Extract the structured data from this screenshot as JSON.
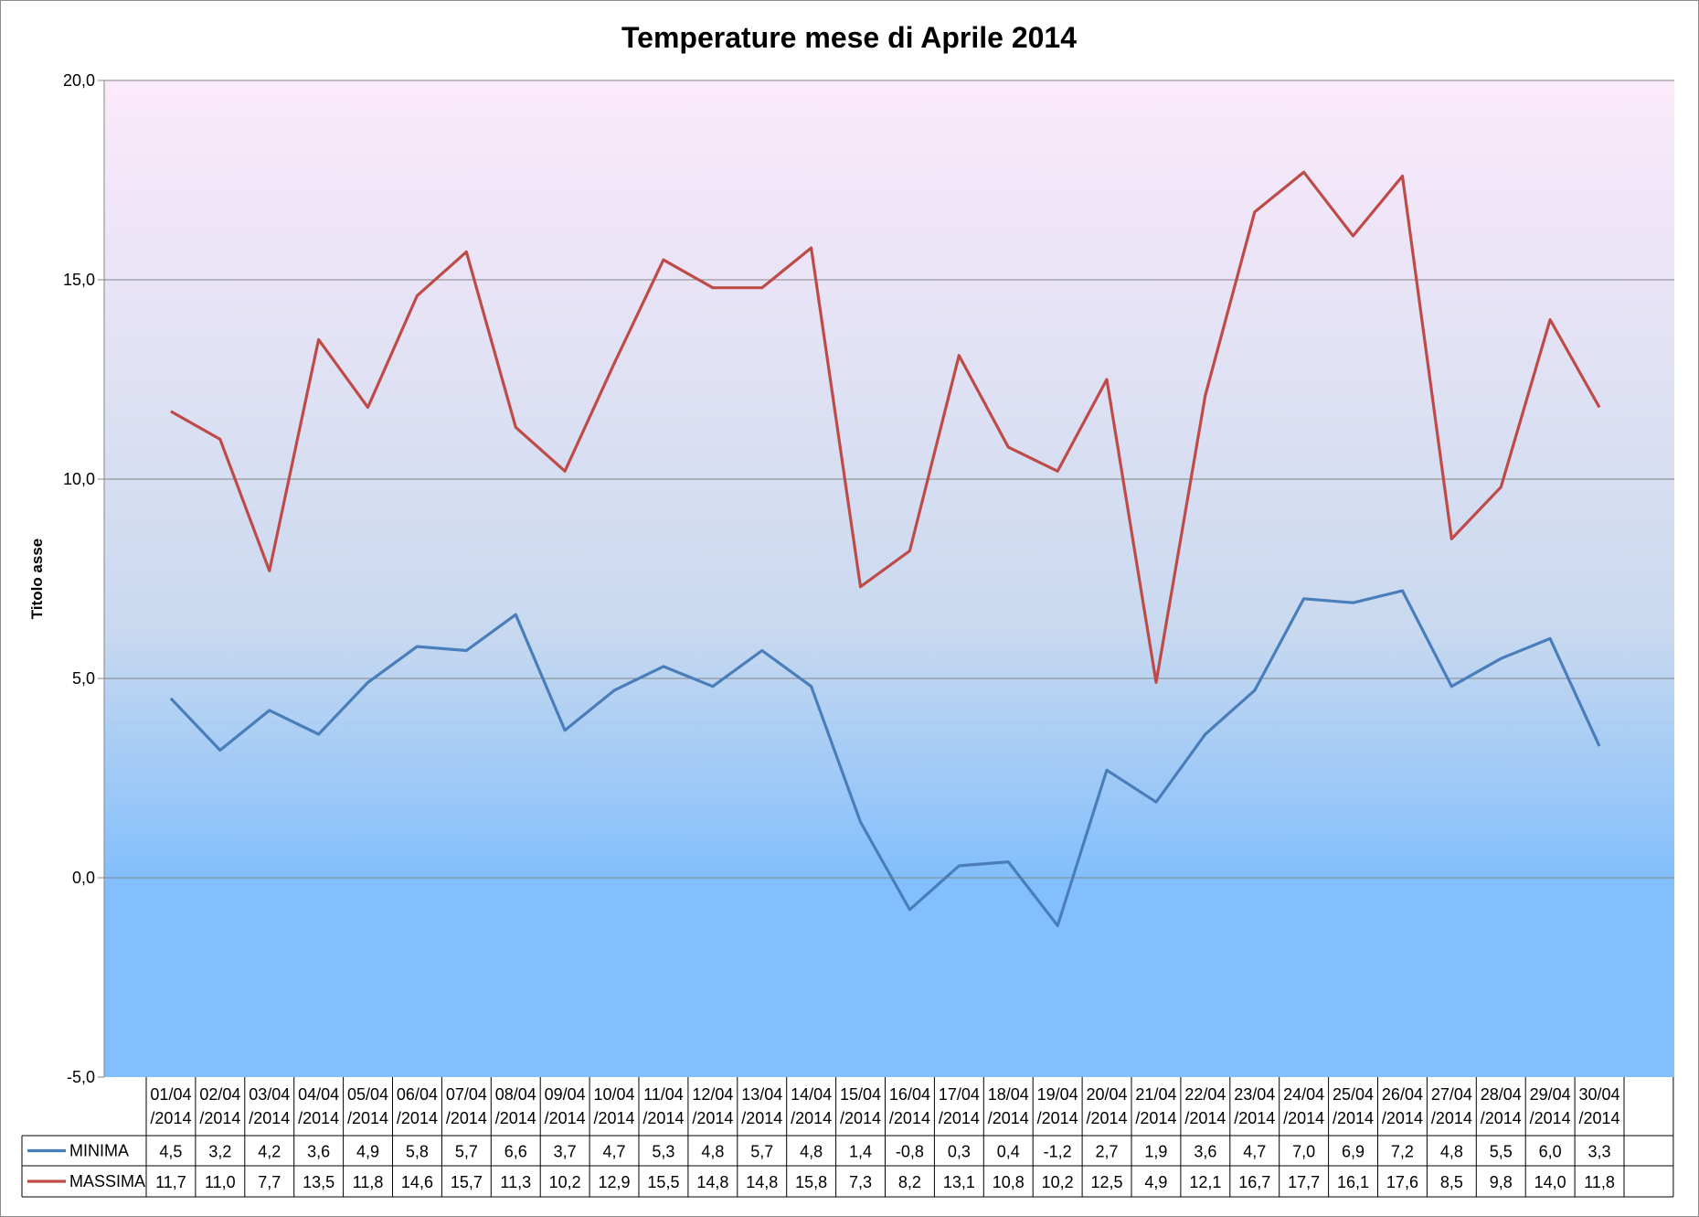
{
  "chart_data": {
    "type": "line",
    "title": "Temperature mese di Aprile 2014",
    "ylabel": "Titolo asse",
    "xlabel": "",
    "ylim": [
      -5,
      20
    ],
    "yticks": [
      "-5,0",
      "0,0",
      "5,0",
      "10,0",
      "15,0",
      "20,0"
    ],
    "ytick_values": [
      -5,
      0,
      5,
      10,
      15,
      20
    ],
    "grid": true,
    "legend": "bottom-table",
    "categories_line1": [
      "01/04",
      "02/04",
      "03/04",
      "04/04",
      "05/04",
      "06/04",
      "07/04",
      "08/04",
      "09/04",
      "10/04",
      "11/04",
      "12/04",
      "13/04",
      "14/04",
      "15/04",
      "16/04",
      "17/04",
      "18/04",
      "19/04",
      "20/04",
      "21/04",
      "22/04",
      "23/04",
      "24/04",
      "25/04",
      "26/04",
      "27/04",
      "28/04",
      "29/04",
      "30/04"
    ],
    "categories_line2": [
      "/2014",
      "/2014",
      "/2014",
      "/2014",
      "/2014",
      "/2014",
      "/2014",
      "/2014",
      "/2014",
      "/2014",
      "/2014",
      "/2014",
      "/2014",
      "/2014",
      "/2014",
      "/2014",
      "/2014",
      "/2014",
      "/2014",
      "/2014",
      "/2014",
      "/2014",
      "/2014",
      "/2014",
      "/2014",
      "/2014",
      "/2014",
      "/2014",
      "/2014",
      "/2014"
    ],
    "series": [
      {
        "name": "MINIMA",
        "color": "#4a7ebb",
        "values": [
          4.5,
          3.2,
          4.2,
          3.6,
          4.9,
          5.8,
          5.7,
          6.6,
          3.7,
          4.7,
          5.3,
          4.8,
          5.7,
          4.8,
          1.4,
          -0.8,
          0.3,
          0.4,
          -1.2,
          2.7,
          1.9,
          3.6,
          4.7,
          7.0,
          6.9,
          7.2,
          4.8,
          5.5,
          6.0,
          3.3
        ],
        "labels": [
          "4,5",
          "3,2",
          "4,2",
          "3,6",
          "4,9",
          "5,8",
          "5,7",
          "6,6",
          "3,7",
          "4,7",
          "5,3",
          "4,8",
          "5,7",
          "4,8",
          "1,4",
          "-0,8",
          "0,3",
          "0,4",
          "-1,2",
          "2,7",
          "1,9",
          "3,6",
          "4,7",
          "7,0",
          "6,9",
          "7,2",
          "4,8",
          "5,5",
          "6,0",
          "3,3"
        ]
      },
      {
        "name": "MASSIMA",
        "color": "#be4b48",
        "values": [
          11.7,
          11.0,
          7.7,
          13.5,
          11.8,
          14.6,
          15.7,
          11.3,
          10.2,
          12.9,
          15.5,
          14.8,
          14.8,
          15.8,
          7.3,
          8.2,
          13.1,
          10.8,
          10.2,
          12.5,
          4.9,
          12.1,
          16.7,
          17.7,
          16.1,
          17.6,
          8.5,
          9.8,
          14.0,
          11.8
        ],
        "labels": [
          "11,7",
          "11,0",
          "7,7",
          "13,5",
          "11,8",
          "14,6",
          "15,7",
          "11,3",
          "10,2",
          "12,9",
          "15,5",
          "14,8",
          "14,8",
          "15,8",
          "7,3",
          "8,2",
          "13,1",
          "10,8",
          "10,2",
          "12,5",
          "4,9",
          "12,1",
          "16,7",
          "17,7",
          "16,1",
          "17,6",
          "8,5",
          "9,8",
          "14,0",
          "11,8"
        ]
      }
    ],
    "background_colors": [
      "#fbeafa",
      "#c9d9ef",
      "#83bffc"
    ]
  }
}
